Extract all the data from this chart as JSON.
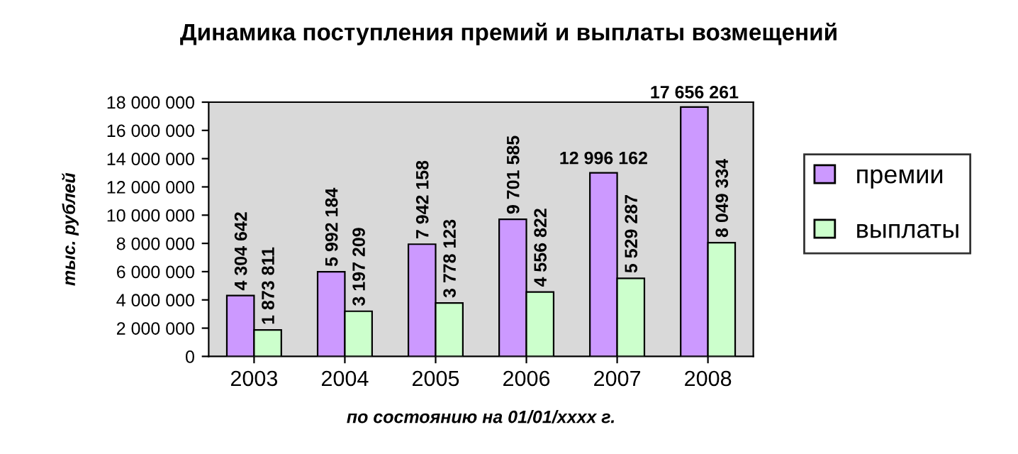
{
  "chart_data": {
    "type": "bar",
    "title": "Динамика поступления премий и выплаты возмещений",
    "xlabel": "по состоянию на 01/01/xxxx г.",
    "ylabel": "тыс. рублей",
    "categories": [
      "2003",
      "2004",
      "2005",
      "2006",
      "2007",
      "2008"
    ],
    "series": [
      {
        "name": "премии",
        "color": "#cc99ff",
        "values": [
          4304642,
          5992184,
          7942158,
          9701585,
          12996162,
          17656261
        ],
        "value_labels": [
          "4 304 642",
          "5 992 184",
          "7 942 158",
          "9 701 585",
          "12 996 162",
          "17 656 261"
        ]
      },
      {
        "name": "выплаты",
        "color": "#ccffcc",
        "values": [
          1873811,
          3197209,
          3778123,
          4556822,
          5529287,
          8049334
        ],
        "value_labels": [
          "1 873 811",
          "3 197 209",
          "3 778 123",
          "4 556 822",
          "5 529 287",
          "8 049 334"
        ]
      }
    ],
    "ylim": [
      0,
      18000000
    ],
    "yticks": [
      {
        "value": 0,
        "label": "0"
      },
      {
        "value": 2000000,
        "label": "2 000 000"
      },
      {
        "value": 4000000,
        "label": "4 000 000"
      },
      {
        "value": 6000000,
        "label": "6 000 000"
      },
      {
        "value": 8000000,
        "label": "8 000 000"
      },
      {
        "value": 10000000,
        "label": "10 000 000"
      },
      {
        "value": 12000000,
        "label": "12 000 000"
      },
      {
        "value": 14000000,
        "label": "14 000 000"
      },
      {
        "value": 16000000,
        "label": "16 000 000"
      },
      {
        "value": 18000000,
        "label": "18 000 000"
      }
    ],
    "legend": "right"
  }
}
